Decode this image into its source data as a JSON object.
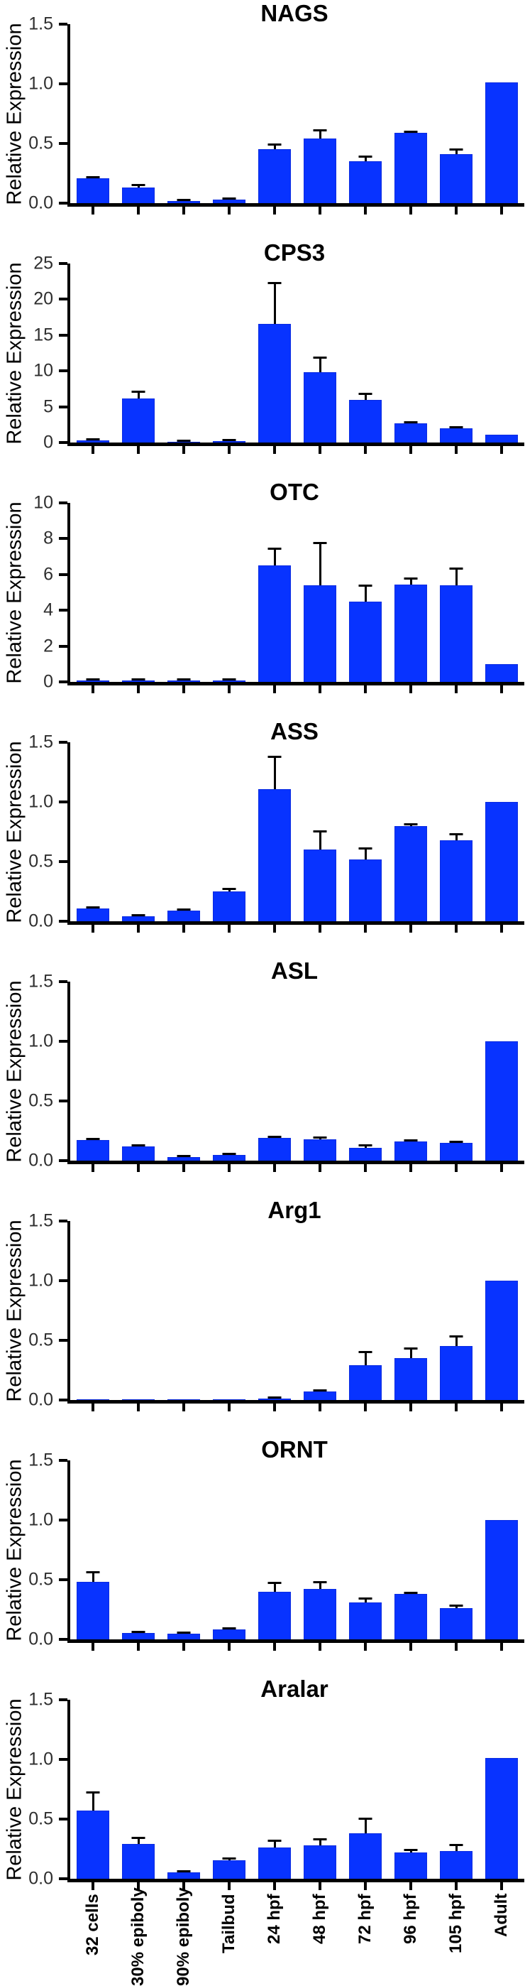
{
  "figure": {
    "background": "#ffffff",
    "bar_color": "#0833ff",
    "bar_edge_color": "#0a2be0",
    "axis_color": "#000000",
    "error_bar_color": "#000000",
    "tick_label_color": "#2e2e2e",
    "title_color": "#000000",
    "shared_ylabel": "Relative Expression"
  },
  "x_categories": [
    "32 cells",
    "30% epiboly",
    "90% epiboly",
    "Tailbud",
    "24 hpf",
    "48 hpf",
    "72 hpf",
    "96 hpf",
    "105 hpf",
    "Adult"
  ],
  "chart_data": [
    {
      "type": "bar",
      "title": "NAGS",
      "xlabel": "",
      "ylabel": "Relative Expression",
      "grid": false,
      "legend": false,
      "categories": [
        "32 cells",
        "30% epiboly",
        "90% epiboly",
        "Tailbud",
        "24 hpf",
        "48 hpf",
        "72 hpf",
        "96 hpf",
        "105 hpf",
        "Adult"
      ],
      "values": [
        0.21,
        0.13,
        0.02,
        0.03,
        0.45,
        0.54,
        0.35,
        0.59,
        0.41,
        1.01
      ],
      "errors": [
        0.01,
        0.03,
        0.01,
        0.01,
        0.05,
        0.08,
        0.05,
        0.02,
        0.05,
        0
      ],
      "ylim": [
        0,
        1.5
      ],
      "yticks": [
        0,
        0.5,
        1.0,
        1.5
      ],
      "ytick_labels": [
        "0.0",
        "0.5",
        "1.0",
        "1.5"
      ],
      "show_x_labels": false
    },
    {
      "type": "bar",
      "title": "CPS3",
      "xlabel": "",
      "ylabel": "Relative Expression",
      "grid": false,
      "legend": false,
      "categories": [
        "32 cells",
        "30% epiboly",
        "90% epiboly",
        "Tailbud",
        "24 hpf",
        "48 hpf",
        "72 hpf",
        "96 hpf",
        "105 hpf",
        "Adult"
      ],
      "values": [
        0.3,
        6.2,
        0.15,
        0.25,
        16.6,
        9.8,
        6.0,
        2.7,
        2.0,
        1.1
      ],
      "errors": [
        0.15,
        1.0,
        0.05,
        0.15,
        5.8,
        2.2,
        0.9,
        0.15,
        0.1,
        0
      ],
      "ylim": [
        0,
        25
      ],
      "yticks": [
        0,
        5,
        10,
        15,
        20,
        25
      ],
      "ytick_labels": [
        "0",
        "5",
        "10",
        "15",
        "20",
        "25"
      ],
      "show_x_labels": false
    },
    {
      "type": "bar",
      "title": "OTC",
      "xlabel": "",
      "ylabel": "Relative Expression",
      "grid": false,
      "legend": false,
      "categories": [
        "32 cells",
        "30% epiboly",
        "90% epiboly",
        "Tailbud",
        "24 hpf",
        "48 hpf",
        "72 hpf",
        "96 hpf",
        "105 hpf",
        "Adult"
      ],
      "values": [
        0.1,
        0.07,
        0.1,
        0.1,
        6.5,
        5.4,
        4.5,
        5.45,
        5.4,
        1.0
      ],
      "errors": [
        0.02,
        0.02,
        0.02,
        0.05,
        1.0,
        2.4,
        0.95,
        0.4,
        1.0,
        0
      ],
      "ylim": [
        0,
        10
      ],
      "yticks": [
        0,
        2,
        4,
        6,
        8,
        10
      ],
      "ytick_labels": [
        "0",
        "2",
        "4",
        "6",
        "8",
        "10"
      ],
      "show_x_labels": false
    },
    {
      "type": "bar",
      "title": "ASS",
      "xlabel": "",
      "ylabel": "Relative Expression",
      "grid": false,
      "legend": false,
      "categories": [
        "32 cells",
        "30% epiboly",
        "90% epiboly",
        "Tailbud",
        "24 hpf",
        "48 hpf",
        "72 hpf",
        "96 hpf",
        "105 hpf",
        "Adult"
      ],
      "values": [
        0.11,
        0.04,
        0.09,
        0.25,
        1.11,
        0.6,
        0.52,
        0.8,
        0.68,
        1.0
      ],
      "errors": [
        0.01,
        0.01,
        0.01,
        0.03,
        0.28,
        0.16,
        0.1,
        0.02,
        0.06,
        0
      ],
      "ylim": [
        0,
        1.5
      ],
      "yticks": [
        0,
        0.5,
        1.0,
        1.5
      ],
      "ytick_labels": [
        "0.0",
        "0.5",
        "1.0",
        "1.5"
      ],
      "show_x_labels": false
    },
    {
      "type": "bar",
      "title": "ASL",
      "xlabel": "",
      "ylabel": "Relative Expression",
      "grid": false,
      "legend": false,
      "categories": [
        "32 cells",
        "30% epiboly",
        "90% epiboly",
        "Tailbud",
        "24 hpf",
        "48 hpf",
        "72 hpf",
        "96 hpf",
        "105 hpf",
        "Adult"
      ],
      "values": [
        0.17,
        0.12,
        0.03,
        0.05,
        0.19,
        0.18,
        0.11,
        0.16,
        0.15,
        1.0
      ],
      "errors": [
        0.02,
        0.01,
        0.01,
        0.01,
        0.015,
        0.02,
        0.025,
        0.01,
        0.01,
        0
      ],
      "ylim": [
        0,
        1.5
      ],
      "yticks": [
        0,
        0.5,
        1.0,
        1.5
      ],
      "ytick_labels": [
        "0.0",
        "0.5",
        "1.0",
        "1.5"
      ],
      "show_x_labels": false
    },
    {
      "type": "bar",
      "title": "Arg1",
      "xlabel": "",
      "ylabel": "Relative Expression",
      "grid": false,
      "legend": false,
      "categories": [
        "32 cells",
        "30% epiboly",
        "90% epiboly",
        "Tailbud",
        "24 hpf",
        "48 hpf",
        "72 hpf",
        "96 hpf",
        "105 hpf",
        "Adult"
      ],
      "values": [
        0,
        0,
        0,
        0,
        0.015,
        0.07,
        0.29,
        0.35,
        0.45,
        1.0
      ],
      "errors": [
        0,
        0,
        0,
        0,
        0.005,
        0.02,
        0.12,
        0.09,
        0.09,
        0
      ],
      "ylim": [
        0,
        1.5
      ],
      "yticks": [
        0,
        0.5,
        1.0,
        1.5
      ],
      "ytick_labels": [
        "0.0",
        "0.5",
        "1.0",
        "1.5"
      ],
      "show_x_labels": false
    },
    {
      "type": "bar",
      "title": "ORNT",
      "xlabel": "",
      "ylabel": "Relative Expression",
      "grid": false,
      "legend": false,
      "categories": [
        "32 cells",
        "30% epiboly",
        "90% epiboly",
        "Tailbud",
        "24 hpf",
        "48 hpf",
        "72 hpf",
        "96 hpf",
        "105 hpf",
        "Adult"
      ],
      "values": [
        0.48,
        0.055,
        0.045,
        0.085,
        0.4,
        0.42,
        0.31,
        0.38,
        0.26,
        1.0
      ],
      "errors": [
        0.09,
        0.01,
        0.01,
        0.01,
        0.08,
        0.07,
        0.04,
        0.01,
        0.03,
        0
      ],
      "ylim": [
        0,
        1.5
      ],
      "yticks": [
        0,
        0.5,
        1.0,
        1.5
      ],
      "ytick_labels": [
        "0.0",
        "0.5",
        "1.0",
        "1.5"
      ],
      "show_x_labels": false
    },
    {
      "type": "bar",
      "title": "Aralar",
      "xlabel": "",
      "ylabel": "Relative Expression",
      "grid": false,
      "legend": false,
      "categories": [
        "32 cells",
        "30% epiboly",
        "90% epiboly",
        "Tailbud",
        "24 hpf",
        "48 hpf",
        "72 hpf",
        "96 hpf",
        "105 hpf",
        "Adult"
      ],
      "values": [
        0.57,
        0.29,
        0.055,
        0.155,
        0.26,
        0.28,
        0.38,
        0.22,
        0.23,
        1.01
      ],
      "errors": [
        0.16,
        0.06,
        0.01,
        0.025,
        0.07,
        0.06,
        0.13,
        0.03,
        0.06,
        0
      ],
      "ylim": [
        0,
        1.5
      ],
      "yticks": [
        0,
        0.5,
        1.0,
        1.5
      ],
      "ytick_labels": [
        "0.0",
        "0.5",
        "1.0",
        "1.5"
      ],
      "show_x_labels": true
    }
  ]
}
